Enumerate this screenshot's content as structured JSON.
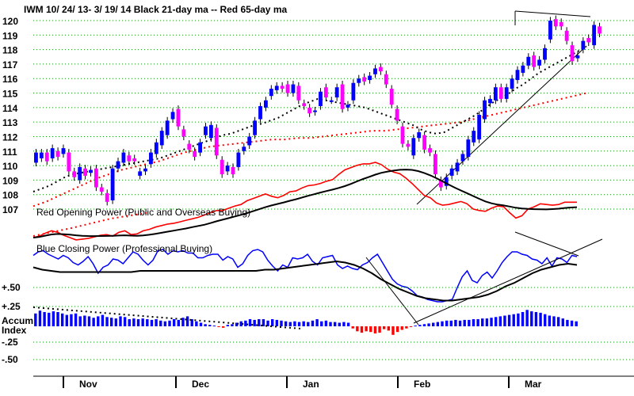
{
  "chart_data": {
    "type": "candlestick-with-indicators",
    "title": "IWM   10/ 24/ 13- 3/ 19/ 14   Black 21-day ma --  Red 65-day ma",
    "price_axis": {
      "ticks": [
        "120",
        "119",
        "118",
        "117",
        "116",
        "115",
        "114",
        "113",
        "112",
        "111",
        "110",
        "109",
        "108",
        "107"
      ],
      "ylim": [
        107,
        120
      ]
    },
    "month_labels": [
      "Nov",
      "Dec",
      "Jan",
      "Feb",
      "Mar"
    ],
    "panel_labels": {
      "opening_power": "Red Opening Power (Public and Overseas Buying)",
      "closing_power": "Blue Closing Power (Professional Buying)"
    },
    "accum_axis": {
      "ticks": [
        "+.50",
        "+.25",
        "Accum",
        "Index",
        "-.25",
        "-.50"
      ]
    },
    "colors": {
      "up_candle": "#0000ff",
      "down_candle": "#ff00ff",
      "ma21": "#000000",
      "ma65": "#ff0000",
      "opening_power": "#ff0000",
      "closing_power": "#0000ff",
      "accum_pos": "#0000ff",
      "accum_neg": "#ff0000",
      "grid": "#00a000"
    },
    "candles": [
      [
        110.2,
        110.9
      ],
      [
        110.5,
        110.9
      ],
      [
        110.9,
        110.3
      ],
      [
        110.5,
        111.2
      ],
      [
        111.0,
        110.6
      ],
      [
        110.8,
        111.2
      ],
      [
        110.9,
        109.6
      ],
      [
        109.6,
        109.2
      ],
      [
        109.0,
        109.9
      ],
      [
        109.8,
        109.3
      ],
      [
        109.5,
        109.7
      ],
      [
        109.8,
        108.5
      ],
      [
        108.5,
        108.2
      ],
      [
        108.1,
        107.5
      ],
      [
        107.6,
        109.8
      ],
      [
        109.8,
        110.3
      ],
      [
        110.2,
        110.9
      ],
      [
        110.7,
        110.3
      ],
      [
        110.5,
        110.3
      ],
      [
        109.3,
        109.6
      ],
      [
        109.6,
        109.8
      ],
      [
        110.1,
        110.9
      ],
      [
        110.8,
        111.6
      ],
      [
        111.4,
        112.4
      ],
      [
        112.1,
        113.1
      ],
      [
        113.2,
        113.7
      ],
      [
        113.9,
        112.7
      ],
      [
        112.5,
        112.0
      ],
      [
        111.5,
        111.1
      ],
      [
        111.0,
        110.6
      ],
      [
        110.9,
        111.6
      ],
      [
        112.1,
        112.7
      ],
      [
        111.9,
        112.8
      ],
      [
        112.6,
        110.7
      ],
      [
        110.4,
        109.4
      ],
      [
        109.6,
        110.0
      ],
      [
        109.9,
        109.4
      ],
      [
        109.9,
        110.9
      ],
      [
        111.0,
        111.3
      ],
      [
        111.4,
        112.0
      ],
      [
        112.1,
        113.1
      ],
      [
        113.2,
        114.1
      ],
      [
        114.0,
        114.5
      ],
      [
        114.8,
        115.3
      ],
      [
        115.2,
        115.5
      ],
      [
        115.5,
        115.3
      ],
      [
        115.6,
        115.0
      ],
      [
        115.0,
        115.6
      ],
      [
        115.5,
        114.5
      ],
      [
        114.3,
        114.1
      ],
      [
        114.0,
        113.6
      ],
      [
        113.7,
        113.8
      ],
      [
        114.1,
        115.1
      ],
      [
        115.4,
        114.7
      ],
      [
        114.5,
        114.5
      ],
      [
        114.7,
        115.4
      ],
      [
        115.6,
        113.9
      ],
      [
        114.0,
        114.2
      ],
      [
        114.5,
        115.7
      ],
      [
        115.7,
        116.0
      ],
      [
        116.1,
        115.8
      ],
      [
        115.9,
        116.2
      ],
      [
        116.3,
        116.7
      ],
      [
        116.8,
        116.5
      ],
      [
        116.3,
        115.6
      ],
      [
        115.3,
        114.2
      ],
      [
        113.9,
        113.1
      ],
      [
        112.7,
        111.5
      ],
      [
        111.5,
        111.3
      ],
      [
        110.7,
        111.9
      ],
      [
        111.9,
        112.3
      ],
      [
        112.1,
        111.1
      ],
      [
        111.2,
        110.9
      ],
      [
        110.8,
        109.4
      ],
      [
        109.0,
        108.5
      ],
      [
        108.6,
        109.2
      ],
      [
        109.3,
        109.8
      ],
      [
        109.6,
        110.2
      ],
      [
        110.3,
        110.8
      ],
      [
        110.6,
        111.8
      ],
      [
        111.6,
        112.4
      ],
      [
        111.8,
        113.5
      ],
      [
        113.2,
        114.5
      ],
      [
        114.3,
        114.6
      ],
      [
        114.5,
        115.4
      ],
      [
        115.4,
        114.6
      ],
      [
        114.6,
        115.4
      ],
      [
        115.3,
        116.0
      ],
      [
        115.9,
        116.6
      ],
      [
        116.4,
        116.9
      ],
      [
        116.9,
        117.5
      ],
      [
        117.6,
        116.8
      ],
      [
        116.9,
        117.3
      ],
      [
        117.3,
        118.1
      ],
      [
        118.7,
        120.0
      ],
      [
        120.1,
        119.6
      ],
      [
        119.9,
        119.6
      ],
      [
        119.3,
        118.6
      ],
      [
        118.3,
        117.2
      ],
      [
        117.4,
        117.6
      ],
      [
        118.0,
        118.6
      ],
      [
        118.8,
        118.5
      ],
      [
        118.3,
        119.7
      ],
      [
        119.6,
        119.1
      ]
    ],
    "ma21": [
      108.2,
      108.4,
      108.6,
      108.9,
      109.2,
      109.4,
      109.5,
      109.6,
      109.7,
      109.8,
      109.9,
      110.0,
      110.1,
      110.2,
      110.3,
      110.4,
      110.5,
      110.7,
      110.9,
      111.1,
      111.3,
      111.5,
      111.7,
      111.9,
      112.1,
      112.2,
      112.4,
      112.6,
      112.8,
      112.9,
      113.1,
      113.3,
      113.6,
      113.9,
      114.2,
      114.4,
      114.6,
      114.5,
      114.4,
      114.3,
      114.2,
      114.1,
      114.0,
      113.8,
      113.6,
      113.4,
      113.2,
      113.0,
      112.8,
      112.5,
      112.3,
      112.2,
      112.3,
      112.6,
      112.9,
      113.2,
      113.5,
      113.9,
      114.3,
      114.6,
      114.9,
      115.3,
      115.6,
      116.0,
      116.4,
      116.7,
      117.0,
      117.3,
      117.6,
      117.9,
      118.2
    ],
    "ma65": [
      107.2,
      107.5,
      107.9,
      108.3,
      108.7,
      109.1,
      109.4,
      109.7,
      109.9,
      110.1,
      110.3,
      110.6,
      110.9,
      111.1,
      111.3,
      111.4,
      111.5,
      111.6,
      111.7,
      111.8,
      111.8,
      111.9,
      111.9,
      112.0,
      112.1,
      112.2,
      112.3,
      112.4,
      112.4,
      112.5,
      112.6,
      112.7,
      112.8,
      112.9,
      113.0,
      113.2,
      113.4,
      113.6,
      113.8,
      114.0,
      114.2,
      114.4,
      114.6,
      114.8,
      115.0
    ],
    "opening_power": [
      0.0,
      0.2,
      0.6,
      0.9,
      0.7,
      0.3,
      0.0,
      -0.3,
      -0.2,
      -0.1,
      0.1,
      0.3,
      0.4,
      0.2,
      0.7,
      0.9,
      0.4,
      0.5,
      0.9,
      1.1,
      1.4,
      1.6,
      1.8,
      1.9,
      2.1,
      2.3,
      2.5,
      2.7,
      3.0,
      3.3,
      3.6,
      3.6,
      3.9,
      4.2,
      4.4,
      4.9,
      5.2,
      5.5,
      5.8,
      5.5,
      5.3,
      5.6,
      6.1,
      6.2,
      6.6,
      6.9,
      7.0,
      7.2,
      7.5,
      7.7,
      8.4,
      9.0,
      9.3,
      9.6,
      9.8,
      9.8,
      10.0,
      9.7,
      9.1,
      8.7,
      8.5,
      7.9,
      7.2,
      6.4,
      5.6,
      5.3,
      4.6,
      4.3,
      4.4,
      4.6,
      4.8,
      4.5,
      3.8,
      3.6,
      3.5,
      3.9,
      4.2,
      4.1,
      3.3,
      2.6,
      2.9,
      3.8,
      4.1,
      4.5,
      4.4,
      4.3,
      4.4,
      4.7,
      4.7,
      4.7
    ],
    "closing_power": [
      0.5,
      0.8,
      0.9,
      0.6,
      0.4,
      0.2,
      0.5,
      0.3,
      -0.1,
      -0.3,
      0.0,
      0.4,
      -0.2,
      -1.0,
      -0.5,
      -0.3,
      0.2,
      0.1,
      -0.2,
      0.3,
      0.8,
      0.6,
      0.1,
      -0.3,
      0.1,
      0.9,
      1.0,
      0.6,
      0.9,
      0.8,
      0.9,
      0.7,
      0.7,
      0.3,
      0.3,
      0.5,
      0.6,
      0.6,
      0.1,
      0.4,
      0.2,
      -0.5,
      -0.2,
      0.5,
      0.9,
      1.0,
      0.8,
      0.1,
      -0.4,
      -0.8,
      -0.3,
      -0.5,
      0.3,
      0.2,
      0.3,
      0.6,
      0.0,
      -0.3,
      0.3,
      0.4,
      0.5,
      -0.3,
      -0.6,
      -0.4,
      -0.6,
      -0.7,
      -0.3,
      -0.1,
      0.3,
      0.6,
      -0.1,
      -0.8,
      -1.5,
      -1.9,
      -2.1,
      -2.2,
      -2.5,
      -2.9,
      -3.0,
      -3.2,
      -3.3,
      -3.4,
      -3.4,
      -3.3,
      -3.2,
      -2.2,
      -1.3,
      -0.8,
      -1.6,
      -1.8,
      -1.2,
      -0.9,
      -1.4,
      -0.8,
      -0.1,
      0.4,
      0.8,
      0.8,
      0.6,
      0.5,
      0.2,
      0.1,
      -0.2,
      0.3,
      -0.4,
      0.3,
      0.2,
      -0.1,
      0.5,
      0.4
    ],
    "cp_ma21": [
      -0.5,
      -0.7,
      -0.8,
      -0.9,
      -0.9,
      -0.9,
      -0.9,
      -0.9,
      -0.9,
      -0.9,
      -0.9,
      -0.9,
      -0.8,
      -0.8,
      -0.8,
      -0.8,
      -0.8,
      -0.8,
      -0.8,
      -0.8,
      -0.8,
      -0.8,
      -0.8,
      -0.8,
      -0.8,
      -0.8,
      -0.7,
      -0.7,
      -0.6,
      -0.5,
      -0.4,
      -0.3,
      -0.2,
      -0.1,
      0.0,
      -0.1,
      -0.3,
      -0.6,
      -1.0,
      -1.5,
      -1.9,
      -2.3,
      -2.6,
      -2.9,
      -3.1,
      -3.2,
      -3.3,
      -3.3,
      -3.2,
      -3.1,
      -3.0,
      -2.8,
      -2.5,
      -2.1,
      -1.8,
      -1.4,
      -1.0,
      -0.7,
      -0.5,
      -0.3,
      -0.2,
      -0.3
    ],
    "accum_index": [
      0.18,
      0.22,
      0.2,
      0.19,
      0.21,
      0.2,
      0.18,
      0.16,
      0.17,
      0.18,
      0.14,
      0.15,
      0.14,
      0.12,
      0.14,
      0.16,
      0.13,
      0.12,
      0.11,
      0.14,
      0.13,
      0.1,
      0.11,
      0.1,
      0.11,
      0.1,
      0.09,
      0.1,
      0.08,
      0.07,
      0.08,
      0.1,
      0.09,
      0.12,
      0.14,
      0.1,
      0.07,
      0.05,
      0.03,
      0.02,
      0.01,
      -0.01,
      -0.02,
      0.02,
      0.03,
      0.05,
      0.07,
      0.08,
      0.1,
      0.09,
      0.1,
      0.1,
      0.08,
      0.1,
      0.09,
      0.08,
      0.07,
      0.06,
      0.07,
      0.06,
      0.07,
      0.06,
      0.08,
      0.1,
      0.07,
      0.08,
      0.06,
      0.06,
      0.05,
      0.06,
      0.05,
      -0.03,
      -0.07,
      -0.09,
      -0.07,
      -0.08,
      -0.1,
      -0.09,
      -0.04,
      -0.06,
      -0.12,
      -0.08,
      -0.05,
      -0.03,
      -0.01,
      0.01,
      0.02,
      0.03,
      0.04,
      0.05,
      0.06,
      0.07,
      0.08,
      0.08,
      0.09,
      0.08,
      0.09,
      0.09,
      0.1,
      0.1,
      0.11,
      0.11,
      0.12,
      0.13,
      0.14,
      0.15,
      0.16,
      0.17,
      0.18,
      0.2,
      0.23,
      0.21,
      0.2,
      0.19,
      0.17,
      0.15,
      0.14,
      0.13,
      0.11,
      0.09,
      0.08,
      0.07
    ],
    "grid": true
  }
}
